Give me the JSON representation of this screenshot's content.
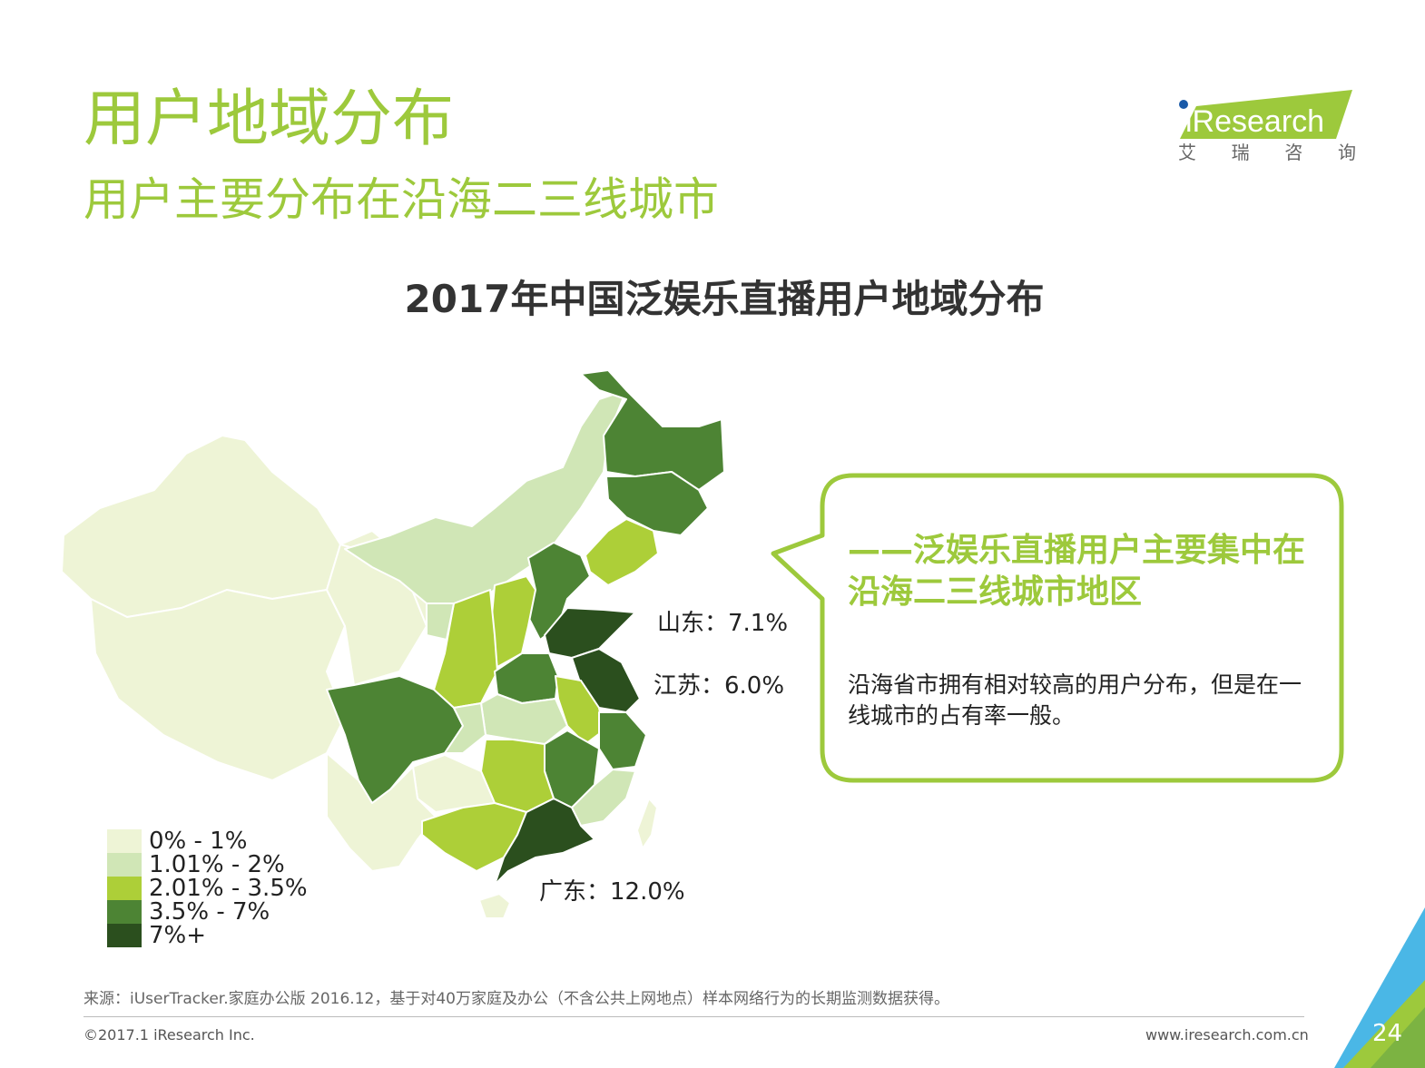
{
  "header": {
    "title": "用户地域分布",
    "subtitle": "用户主要分布在沿海二三线城市"
  },
  "logo": {
    "brand": "iResearch",
    "chars": [
      "艾",
      "瑞",
      "咨",
      "询"
    ],
    "brand_color": "#9dc93c"
  },
  "chart_data": {
    "type": "map",
    "title": "2017年中国泛娱乐直播用户地域分布",
    "legend": [
      {
        "label": "0% - 1%",
        "color": "#eef4d6"
      },
      {
        "label": "1.01% - 2%",
        "color": "#d0e6b6"
      },
      {
        "label": "2.01% - 3.5%",
        "color": "#adcf38"
      },
      {
        "label": "3.5% - 7%",
        "color": "#4d8434"
      },
      {
        "label": "7%+",
        "color": "#2b4f1e"
      }
    ],
    "annotations": [
      {
        "region": "山东",
        "label": "山东：7.1%",
        "value": 7.1
      },
      {
        "region": "江苏",
        "label": "江苏：6.0%",
        "value": 6.0
      },
      {
        "region": "广东",
        "label": "广东：12.0%",
        "value": 12.0
      }
    ]
  },
  "callout": {
    "headline": "——泛娱乐直播用户主要集中在沿海二三线城市地区",
    "body": "沿海省市拥有相对较高的用户分布，但是在一线城市的占有率一般。"
  },
  "footer": {
    "source": "来源：iUserTracker.家庭办公版 2016.12，基于对40万家庭及办公（不含公共上网地点）样本网络行为的长期监测数据获得。",
    "copyright": "©2017.1 iResearch Inc.",
    "url": "www.iresearch.com.cn",
    "page": "24"
  }
}
